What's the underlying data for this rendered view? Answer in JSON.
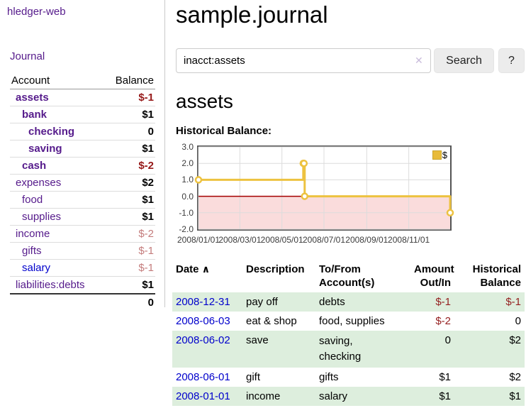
{
  "app": {
    "title": "hledger-web"
  },
  "sidebar": {
    "journal_link": "Journal",
    "table": {
      "account_header": "Account",
      "balance_header": "Balance",
      "rows": [
        {
          "name": "assets",
          "balance": "$-1"
        },
        {
          "name": "bank",
          "balance": "$1"
        },
        {
          "name": "checking",
          "balance": "0"
        },
        {
          "name": "saving",
          "balance": "$1"
        },
        {
          "name": "cash",
          "balance": "$-2"
        },
        {
          "name": "expenses",
          "balance": "$2"
        },
        {
          "name": "food",
          "balance": "$1"
        },
        {
          "name": "supplies",
          "balance": "$1"
        },
        {
          "name": "income",
          "balance": "$-2"
        },
        {
          "name": "gifts",
          "balance": "$-1"
        },
        {
          "name": "salary",
          "balance": "$-1"
        },
        {
          "name": "liabilities:debts",
          "balance": "$1"
        }
      ],
      "total": "0"
    }
  },
  "main": {
    "title": "sample.journal",
    "search": {
      "value": "inacct:assets",
      "clear_icon": "✕",
      "button_label": "Search",
      "help_label": "?"
    },
    "account_heading": "assets",
    "chart_label": "Historical Balance:"
  },
  "chart_data": {
    "type": "line",
    "title": "Historical Balance:",
    "step": true,
    "series_label": "$",
    "points": [
      [
        "2008-01-01",
        1
      ],
      [
        "2008-06-01",
        2
      ],
      [
        "2008-06-02",
        2
      ],
      [
        "2008-06-03",
        0
      ],
      [
        "2008-12-31",
        -1
      ]
    ],
    "x_range": [
      "2008-01-01",
      "2008-12-31"
    ],
    "ylim": [
      -2,
      3
    ],
    "y_ticks": [
      3.0,
      2.0,
      1.0,
      0.0,
      -1.0,
      -2.0
    ],
    "x_ticks": [
      "2008/01/01",
      "2008/03/01",
      "2008/05/01",
      "2008/07/01",
      "2008/09/01",
      "2008/11/01"
    ],
    "grid": true,
    "legend_position": "top-right",
    "line_color": "#edc240",
    "zero_line_color": "#a40000",
    "negative_region_color": "#fadcdc"
  },
  "register": {
    "headers": {
      "date": "Date",
      "sort_asc_icon": "∧",
      "description": "Description",
      "accounts": "To/From Account(s)",
      "amount": "Amount Out/In",
      "balance": "Historical Balance"
    },
    "rows": [
      {
        "date": "2008-12-31",
        "description": "pay off",
        "accounts": "debts",
        "amount": "$-1",
        "balance": "$-1"
      },
      {
        "date": "2008-06-03",
        "description": "eat & shop",
        "accounts": "food, supplies",
        "amount": "$-2",
        "balance": "0"
      },
      {
        "date": "2008-06-02",
        "description": "save",
        "accounts": "saving,\nchecking",
        "amount": "0",
        "balance": "$2"
      },
      {
        "date": "2008-06-01",
        "description": "gift",
        "accounts": "gifts",
        "amount": "$1",
        "balance": "$2"
      },
      {
        "date": "2008-01-01",
        "description": "income",
        "accounts": "salary",
        "amount": "$1",
        "balance": "$1"
      }
    ]
  },
  "colors": {
    "link_purple": "#551a8b",
    "link_blue": "#0000cc",
    "negative_strong": "#961919",
    "negative_soft": "#c47c7c",
    "row_green": "#ddeedd",
    "chart_line": "#edc240"
  }
}
